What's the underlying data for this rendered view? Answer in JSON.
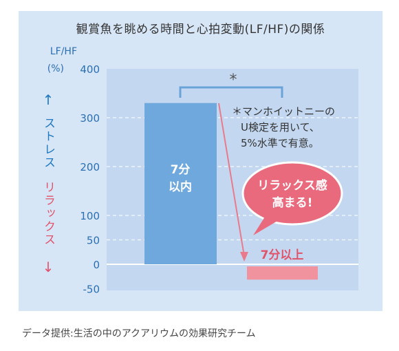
{
  "title": "観賞魚を眺める時間と心拍変動(LF/HF)の関係",
  "source": "データ提供:生活の中のアクアリウムの効果研究チーム",
  "colors": {
    "panel": "#d7e6f6",
    "plot": "#c3d8f0",
    "bar_within": "#6fa8dc",
    "bar_over": "#f1929f",
    "axis_text": "#2a6fb3",
    "bracket": "#6aa3d8",
    "arrow": "#e87a8c",
    "bubble": "#ea6a7d"
  },
  "axis": {
    "ylabel_line1": "LF/HF",
    "ylabel_line2": "(%)",
    "stress_label": "ストレス",
    "relax_label": "リラックス",
    "up_arrow": "↑",
    "down_arrow": "↓"
  },
  "annotations": {
    "significance_mark": "*",
    "note_line1": "＊マンホイットニーの",
    "note_line2": "U検定を用いて、",
    "note_line3": "5%水準で有意。",
    "bubble_line1": "リラックス感",
    "bubble_line2": "高まる!",
    "bar2_label": "7分以上",
    "bar1_label_line1": "7分",
    "bar1_label_line2": "以内"
  },
  "chart_data": {
    "type": "bar",
    "title": "観賞魚を眺める時間と心拍変動(LF/HF)の関係",
    "xlabel": "",
    "ylabel": "LF/HF (%)",
    "categories": [
      "7分以内",
      "7分以上"
    ],
    "values": [
      330,
      -30
    ],
    "ylim": [
      -50,
      400
    ],
    "yticks": [
      400,
      300,
      200,
      100,
      50,
      0,
      -50
    ],
    "grid": true,
    "significance": "*"
  }
}
